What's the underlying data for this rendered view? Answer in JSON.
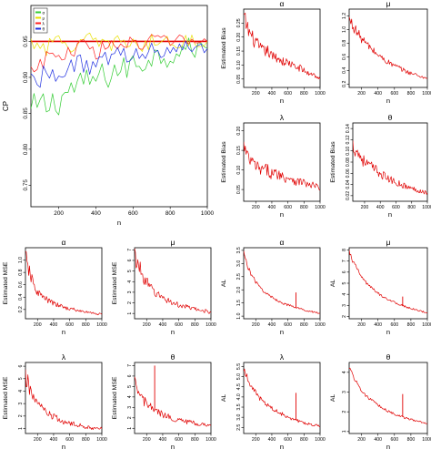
{
  "chart_data": [
    {
      "id": "cp",
      "type": "line",
      "title": "",
      "xlabel": "n",
      "ylabel": "CP",
      "xlim": [
        50,
        1000
      ],
      "ylim": [
        0.72,
        1.0
      ],
      "xticks": [
        200,
        400,
        600,
        800,
        1000
      ],
      "yticks": [
        0.75,
        0.8,
        0.85,
        0.9,
        0.95
      ],
      "ytick_labels": [
        "0.75",
        "0.80",
        "0.85",
        "0.90",
        "0.95"
      ],
      "legend": {
        "position": "top-left",
        "entries": [
          "α",
          "μ",
          "λ",
          "θ"
        ]
      },
      "reference_line": {
        "y": 0.95,
        "color": "#e00000"
      },
      "x": [
        50,
        100,
        150,
        200,
        250,
        300,
        350,
        400,
        450,
        500,
        550,
        600,
        650,
        700,
        750,
        800,
        850,
        900,
        950,
        1000
      ],
      "series": [
        {
          "name": "α",
          "color": "#33cc33",
          "values": [
            0.85,
            0.86,
            0.86,
            0.87,
            0.88,
            0.89,
            0.89,
            0.9,
            0.9,
            0.91,
            0.91,
            0.92,
            0.92,
            0.93,
            0.93,
            0.93,
            0.94,
            0.94,
            0.94,
            0.94
          ]
        },
        {
          "name": "μ",
          "color": "#e8e000",
          "values": [
            0.95,
            0.95,
            0.94,
            0.95,
            0.95,
            0.94,
            0.95,
            0.95,
            0.94,
            0.95,
            0.95,
            0.95,
            0.94,
            0.95,
            0.95,
            0.95,
            0.95,
            0.95,
            0.95,
            0.95
          ]
        },
        {
          "name": "λ",
          "color": "#ff2020",
          "values": [
            0.91,
            0.92,
            0.93,
            0.93,
            0.93,
            0.94,
            0.94,
            0.94,
            0.94,
            0.94,
            0.95,
            0.95,
            0.94,
            0.95,
            0.95,
            0.95,
            0.95,
            0.95,
            0.95,
            0.95
          ]
        },
        {
          "name": "θ",
          "color": "#2030e0",
          "values": [
            0.9,
            0.9,
            0.91,
            0.91,
            0.91,
            0.92,
            0.92,
            0.92,
            0.92,
            0.93,
            0.93,
            0.93,
            0.93,
            0.94,
            0.94,
            0.94,
            0.94,
            0.94,
            0.94,
            0.94
          ]
        }
      ]
    },
    {
      "id": "bias-alpha",
      "type": "line",
      "title": "α",
      "xlabel": "n",
      "ylabel": "Estimated Bias",
      "xlim": [
        50,
        1000
      ],
      "ylim": [
        0.02,
        0.3
      ],
      "xticks": [
        200,
        400,
        600,
        800,
        1000
      ],
      "yticks": [
        0.05,
        0.1,
        0.15,
        0.2,
        0.25
      ],
      "ytick_labels": [
        "0.05",
        "0.10",
        "0.15",
        "0.20",
        "0.25"
      ],
      "x": [
        50,
        100,
        150,
        200,
        250,
        300,
        350,
        400,
        450,
        500,
        550,
        600,
        650,
        700,
        750,
        800,
        850,
        900,
        950,
        1000
      ],
      "series": [
        {
          "color": "#e00000",
          "values": [
            0.27,
            0.23,
            0.2,
            0.18,
            0.16,
            0.15,
            0.15,
            0.13,
            0.13,
            0.12,
            0.11,
            0.11,
            0.1,
            0.09,
            0.09,
            0.08,
            0.07,
            0.07,
            0.06,
            0.05
          ]
        }
      ]
    },
    {
      "id": "bias-mu",
      "type": "line",
      "title": "μ",
      "xlabel": "n",
      "ylabel": "",
      "xlim": [
        50,
        1000
      ],
      "ylim": [
        0.15,
        1.3
      ],
      "xticks": [
        200,
        400,
        600,
        800,
        1000
      ],
      "yticks": [
        0.2,
        0.4,
        0.6,
        0.8,
        1.0,
        1.2
      ],
      "ytick_labels": [
        "0.2",
        "0.4",
        "0.6",
        "0.8",
        "1.0",
        "1.2"
      ],
      "x": [
        50,
        100,
        150,
        200,
        250,
        300,
        350,
        400,
        450,
        500,
        550,
        600,
        650,
        700,
        750,
        800,
        850,
        900,
        950,
        1000
      ],
      "series": [
        {
          "color": "#e00000",
          "values": [
            1.15,
            1.05,
            0.95,
            0.87,
            0.8,
            0.74,
            0.68,
            0.63,
            0.58,
            0.54,
            0.5,
            0.47,
            0.44,
            0.41,
            0.38,
            0.36,
            0.34,
            0.32,
            0.3,
            0.28
          ]
        }
      ]
    },
    {
      "id": "bias-lambda",
      "type": "line",
      "title": "λ",
      "xlabel": "n",
      "ylabel": "Estimated Bias",
      "xlim": [
        50,
        1000
      ],
      "ylim": [
        0.02,
        0.22
      ],
      "xticks": [
        200,
        400,
        600,
        800,
        1000
      ],
      "yticks": [
        0.05,
        0.1,
        0.15,
        0.2
      ],
      "ytick_labels": [
        "0.05",
        "0.10",
        "0.15",
        "0.20"
      ],
      "x": [
        50,
        100,
        150,
        200,
        250,
        300,
        350,
        400,
        450,
        500,
        550,
        600,
        650,
        700,
        750,
        800,
        850,
        900,
        950,
        1000
      ],
      "series": [
        {
          "color": "#e00000",
          "values": [
            0.16,
            0.13,
            0.12,
            0.11,
            0.1,
            0.1,
            0.1,
            0.09,
            0.09,
            0.09,
            0.08,
            0.08,
            0.08,
            0.07,
            0.07,
            0.07,
            0.06,
            0.06,
            0.06,
            0.05
          ]
        }
      ]
    },
    {
      "id": "bias-theta",
      "type": "line",
      "title": "θ",
      "xlabel": "n",
      "ylabel": "Estimated Bias",
      "xlim": [
        50,
        1000
      ],
      "ylim": [
        0.01,
        0.15
      ],
      "xticks": [
        200,
        400,
        600,
        800,
        1000
      ],
      "yticks": [
        0.02,
        0.04,
        0.06,
        0.08,
        0.1,
        0.12,
        0.14
      ],
      "ytick_labels": [
        "0.02",
        "0.04",
        "0.06",
        "0.08",
        "0.10",
        "0.12",
        "0.14"
      ],
      "x": [
        50,
        100,
        150,
        200,
        250,
        300,
        350,
        400,
        450,
        500,
        550,
        600,
        650,
        700,
        750,
        800,
        850,
        900,
        950,
        1000
      ],
      "series": [
        {
          "color": "#e00000",
          "values": [
            0.11,
            0.1,
            0.09,
            0.08,
            0.075,
            0.07,
            0.065,
            0.06,
            0.055,
            0.05,
            0.047,
            0.044,
            0.041,
            0.038,
            0.035,
            0.033,
            0.031,
            0.029,
            0.027,
            0.025
          ]
        }
      ]
    },
    {
      "id": "mse-alpha",
      "type": "line",
      "title": "α",
      "xlabel": "n",
      "ylabel": "Estimated MSE",
      "xlim": [
        50,
        1000
      ],
      "ylim": [
        0.05,
        1.2
      ],
      "xticks": [
        200,
        400,
        600,
        800,
        1000
      ],
      "yticks": [
        0.2,
        0.4,
        0.6,
        0.8,
        1.0
      ],
      "ytick_labels": [
        "0.2",
        "0.4",
        "0.6",
        "0.8",
        "1.0"
      ],
      "x": [
        50,
        100,
        150,
        200,
        250,
        300,
        350,
        400,
        450,
        500,
        550,
        600,
        650,
        700,
        750,
        800,
        850,
        900,
        950,
        1000
      ],
      "series": [
        {
          "color": "#e00000",
          "values": [
            1.05,
            0.8,
            0.6,
            0.48,
            0.42,
            0.37,
            0.33,
            0.3,
            0.27,
            0.25,
            0.23,
            0.21,
            0.2,
            0.18,
            0.17,
            0.16,
            0.15,
            0.14,
            0.13,
            0.12
          ]
        }
      ]
    },
    {
      "id": "mse-mu",
      "type": "line",
      "title": "μ",
      "xlabel": "n",
      "ylabel": "Estimated MSE",
      "xlim": [
        50,
        1000
      ],
      "ylim": [
        0.5,
        7.2
      ],
      "xticks": [
        200,
        400,
        600,
        800,
        1000
      ],
      "yticks": [
        1,
        2,
        3,
        4,
        5,
        6,
        7
      ],
      "ytick_labels": [
        "1",
        "2",
        "3",
        "4",
        "5",
        "6",
        "7"
      ],
      "x": [
        50,
        100,
        150,
        200,
        250,
        300,
        350,
        400,
        450,
        500,
        550,
        600,
        650,
        700,
        750,
        800,
        850,
        900,
        950,
        1000
      ],
      "series": [
        {
          "color": "#e00000",
          "values": [
            6.5,
            5.5,
            4.6,
            3.9,
            3.4,
            3.0,
            2.7,
            2.5,
            2.3,
            2.1,
            1.9,
            1.8,
            1.7,
            1.6,
            1.5,
            1.4,
            1.3,
            1.25,
            1.2,
            1.1
          ]
        }
      ]
    },
    {
      "id": "al-alpha",
      "type": "line",
      "title": "α",
      "xlabel": "n",
      "ylabel": "AL",
      "xlim": [
        50,
        1000
      ],
      "ylim": [
        0.9,
        3.6
      ],
      "xticks": [
        200,
        400,
        600,
        800,
        1000
      ],
      "yticks": [
        1.0,
        1.5,
        2.0,
        2.5,
        3.0,
        3.5
      ],
      "ytick_labels": [
        "1.0",
        "1.5",
        "2.0",
        "2.5",
        "3.0",
        "3.5"
      ],
      "spike": {
        "x": 700,
        "y": 1.9
      },
      "x": [
        50,
        100,
        150,
        200,
        250,
        300,
        350,
        400,
        450,
        500,
        550,
        600,
        650,
        700,
        750,
        800,
        850,
        900,
        950,
        1000
      ],
      "series": [
        {
          "color": "#e00000",
          "values": [
            3.4,
            2.9,
            2.55,
            2.3,
            2.1,
            1.95,
            1.82,
            1.72,
            1.63,
            1.55,
            1.48,
            1.42,
            1.37,
            1.32,
            1.28,
            1.24,
            1.2,
            1.17,
            1.14,
            1.11
          ]
        }
      ]
    },
    {
      "id": "al-mu",
      "type": "line",
      "title": "μ",
      "xlabel": "n",
      "ylabel": "AL",
      "xlim": [
        50,
        1000
      ],
      "ylim": [
        1.8,
        8.2
      ],
      "xticks": [
        200,
        400,
        600,
        800,
        1000
      ],
      "yticks": [
        2,
        3,
        4,
        5,
        6,
        7,
        8
      ],
      "ytick_labels": [
        "2",
        "3",
        "4",
        "5",
        "6",
        "7",
        "8"
      ],
      "spike": {
        "x": 700,
        "y": 3.8
      },
      "x": [
        50,
        100,
        150,
        200,
        250,
        300,
        350,
        400,
        450,
        500,
        550,
        600,
        650,
        700,
        750,
        800,
        850,
        900,
        950,
        1000
      ],
      "series": [
        {
          "color": "#e00000",
          "values": [
            7.8,
            6.9,
            6.2,
            5.6,
            5.1,
            4.7,
            4.4,
            4.1,
            3.85,
            3.65,
            3.45,
            3.28,
            3.12,
            2.98,
            2.85,
            2.73,
            2.62,
            2.52,
            2.43,
            2.35
          ]
        }
      ]
    },
    {
      "id": "mse-lambda",
      "type": "line",
      "title": "λ",
      "xlabel": "n",
      "ylabel": "Estimated MSE",
      "xlim": [
        50,
        1000
      ],
      "ylim": [
        0.6,
        6.3
      ],
      "xticks": [
        200,
        400,
        600,
        800,
        1000
      ],
      "yticks": [
        1,
        2,
        3,
        4,
        5,
        6
      ],
      "ytick_labels": [
        "1",
        "2",
        "3",
        "4",
        "5",
        "6"
      ],
      "x": [
        50,
        100,
        150,
        200,
        250,
        300,
        350,
        400,
        450,
        500,
        550,
        600,
        650,
        700,
        750,
        800,
        850,
        900,
        950,
        1000
      ],
      "series": [
        {
          "color": "#e00000",
          "values": [
            5.0,
            4.3,
            3.6,
            3.0,
            2.6,
            2.3,
            2.1,
            1.9,
            1.75,
            1.6,
            1.5,
            1.4,
            1.33,
            1.26,
            1.2,
            1.15,
            1.1,
            1.06,
            1.02,
            0.98
          ]
        }
      ]
    },
    {
      "id": "mse-theta",
      "type": "line",
      "title": "θ",
      "xlabel": "n",
      "ylabel": "Estimated MSE",
      "xlim": [
        50,
        1000
      ],
      "ylim": [
        0.5,
        7.3
      ],
      "xticks": [
        200,
        400,
        600,
        800,
        1000
      ],
      "yticks": [
        1,
        2,
        3,
        4,
        5,
        6,
        7
      ],
      "ytick_labels": [
        "1",
        "2",
        "3",
        "4",
        "5",
        "6",
        "7"
      ],
      "spike": {
        "x": 300,
        "y": 7.0
      },
      "x": [
        50,
        100,
        150,
        200,
        250,
        300,
        350,
        400,
        450,
        500,
        550,
        600,
        650,
        700,
        750,
        800,
        850,
        900,
        950,
        1000
      ],
      "series": [
        {
          "color": "#e00000",
          "values": [
            5.2,
            4.4,
            3.8,
            3.3,
            3.0,
            2.7,
            2.5,
            2.3,
            2.15,
            2.0,
            1.9,
            1.8,
            1.7,
            1.62,
            1.55,
            1.48,
            1.42,
            1.36,
            1.31,
            1.26
          ]
        }
      ]
    },
    {
      "id": "al-lambda",
      "type": "line",
      "title": "λ",
      "xlabel": "n",
      "ylabel": "AL",
      "xlim": [
        50,
        1000
      ],
      "ylim": [
        2.2,
        5.7
      ],
      "xticks": [
        200,
        400,
        600,
        800,
        1000
      ],
      "yticks": [
        2.5,
        3.0,
        3.5,
        4.0,
        4.5,
        5.0,
        5.5
      ],
      "ytick_labels": [
        "2.5",
        "3.0",
        "3.5",
        "4.0",
        "4.5",
        "5.0",
        "5.5"
      ],
      "spike": {
        "x": 700,
        "y": 4.2
      },
      "x": [
        50,
        100,
        150,
        200,
        250,
        300,
        350,
        400,
        450,
        500,
        550,
        600,
        650,
        700,
        750,
        800,
        850,
        900,
        950,
        1000
      ],
      "series": [
        {
          "color": "#e00000",
          "values": [
            5.4,
            4.9,
            4.5,
            4.2,
            3.95,
            3.75,
            3.58,
            3.44,
            3.32,
            3.21,
            3.11,
            3.02,
            2.94,
            2.87,
            2.81,
            2.75,
            2.69,
            2.64,
            2.59,
            2.54
          ]
        }
      ]
    },
    {
      "id": "al-theta",
      "type": "line",
      "title": "θ",
      "xlabel": "n",
      "ylabel": "AL",
      "xlim": [
        50,
        1000
      ],
      "ylim": [
        0.9,
        4.5
      ],
      "xticks": [
        200,
        400,
        600,
        800,
        1000
      ],
      "yticks": [
        1,
        2,
        3,
        4
      ],
      "ytick_labels": [
        "1",
        "2",
        "3",
        "4"
      ],
      "spike": {
        "x": 700,
        "y": 2.9
      },
      "x": [
        50,
        100,
        150,
        200,
        250,
        300,
        350,
        400,
        450,
        500,
        550,
        600,
        650,
        700,
        750,
        800,
        850,
        900,
        950,
        1000
      ],
      "series": [
        {
          "color": "#e00000",
          "values": [
            4.3,
            3.8,
            3.4,
            3.1,
            2.85,
            2.65,
            2.48,
            2.33,
            2.2,
            2.08,
            1.98,
            1.89,
            1.81,
            1.74,
            1.67,
            1.61,
            1.56,
            1.51,
            1.46,
            1.42
          ]
        }
      ]
    }
  ]
}
